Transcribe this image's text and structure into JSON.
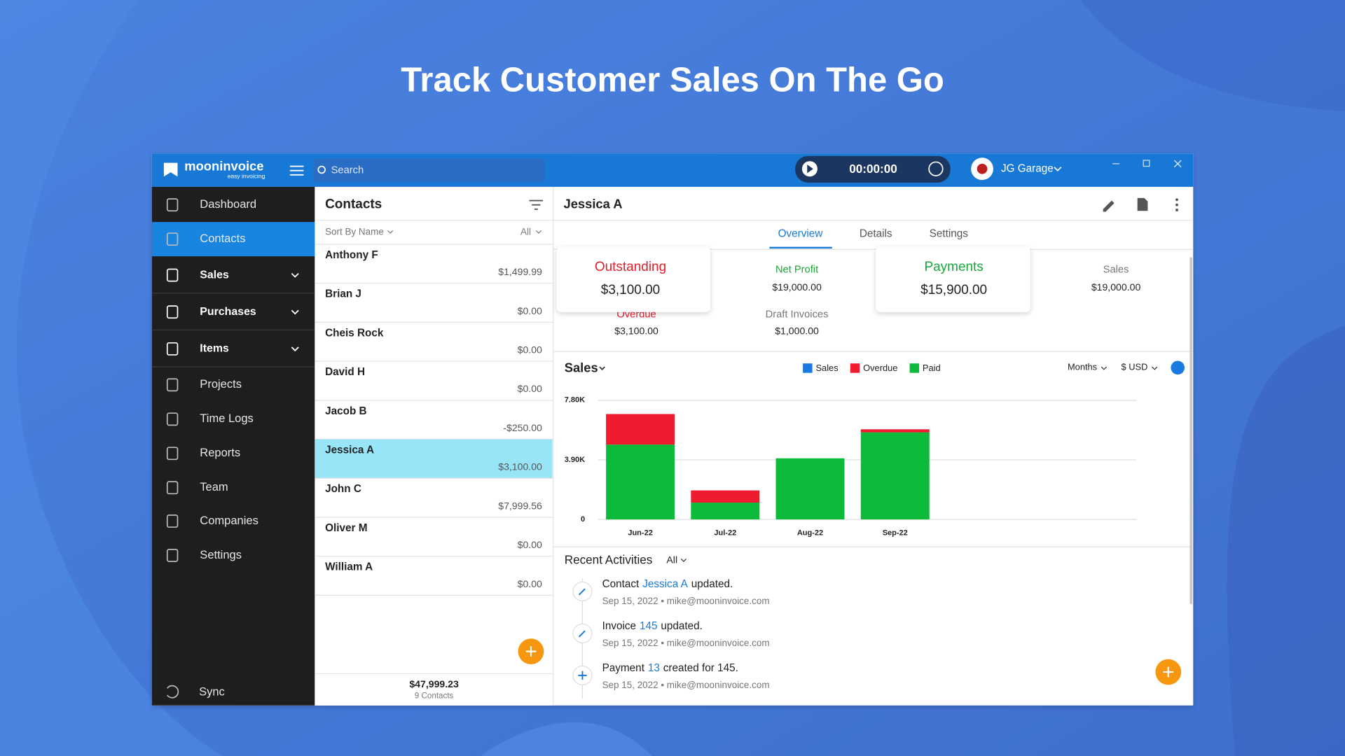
{
  "headline": "Track Customer Sales On The Go",
  "titlebar": {
    "brand": "mooninvoice",
    "tagline": "easy invoicing",
    "search": "Search",
    "timer": "00:00:00",
    "company": "JG Garage"
  },
  "sidebar": {
    "items": [
      "Dashboard",
      "Contacts",
      "Sales",
      "Purchases",
      "Items",
      "Projects",
      "Time Logs",
      "Reports",
      "Team",
      "Companies",
      "Settings"
    ],
    "sync": "Sync"
  },
  "contacts": {
    "title": "Contacts",
    "sort": "Sort By Name",
    "filter": "All",
    "list": [
      {
        "name": "Anthony F",
        "amount": "$1,499.99"
      },
      {
        "name": "Brian J",
        "amount": "$0.00"
      },
      {
        "name": "Cheis Rock",
        "amount": "$0.00"
      },
      {
        "name": "David H",
        "amount": "$0.00"
      },
      {
        "name": "Jacob B",
        "amount": "-$250.00"
      },
      {
        "name": "Jessica A",
        "amount": "$3,100.00"
      },
      {
        "name": "John C",
        "amount": "$7,999.56"
      },
      {
        "name": "Oliver M",
        "amount": "$0.00"
      },
      {
        "name": "William A",
        "amount": "$0.00"
      }
    ],
    "total": "$47,999.23",
    "count": "9 Contacts"
  },
  "detail": {
    "name": "Jessica A",
    "tabs": [
      "Overview",
      "Details",
      "Settings"
    ],
    "summary": {
      "outstanding_label": "Outstanding",
      "outstanding": "$3,100.00",
      "net_profit_label": "Net Profit",
      "net_profit": "$19,000.00",
      "payments_label": "Payments",
      "payments": "$15,900.00",
      "sales_label": "Sales",
      "sales": "$19,000.00",
      "overdue_label": "Overdue",
      "overdue": "$3,100.00",
      "draft_label": "Draft Invoices",
      "draft": "$1,000.00"
    },
    "chart": {
      "type": "bar",
      "title": "Sales",
      "period": "Months",
      "currency": "$ USD",
      "categories": [
        "Jun-22",
        "Jul-22",
        "Aug-22",
        "Sep-22"
      ],
      "series": [
        {
          "name": "Sales",
          "color": "#1a7ae0",
          "values": [
            null,
            null,
            null,
            null
          ]
        },
        {
          "name": "Overdue",
          "color": "#ee1c2e",
          "values": [
            2000,
            800,
            0,
            200
          ]
        },
        {
          "name": "Paid",
          "color": "#0cbb3a",
          "values": [
            4900,
            1100,
            4000,
            5700
          ]
        }
      ],
      "ylim": [
        0,
        7800
      ],
      "yticks": [
        0,
        {
          "value": 3900,
          "label": "3.90K"
        },
        {
          "value": 7800,
          "label": "7.80K"
        }
      ],
      "grid": true
    },
    "activities": {
      "title": "Recent Activities",
      "filter": "All",
      "items": [
        {
          "prefix": "Contact",
          "link": "Jessica A",
          "suffix": "updated.",
          "meta": "Sep 15, 2022 • mike@mooninvoice.com"
        },
        {
          "prefix": "Invoice",
          "link": "145",
          "suffix": "updated.",
          "meta": "Sep 15, 2022 • mike@mooninvoice.com"
        },
        {
          "prefix": "Payment",
          "link": "13",
          "suffix": "created for 145.",
          "meta": "Sep 15, 2022 • mike@mooninvoice.com"
        }
      ]
    }
  }
}
